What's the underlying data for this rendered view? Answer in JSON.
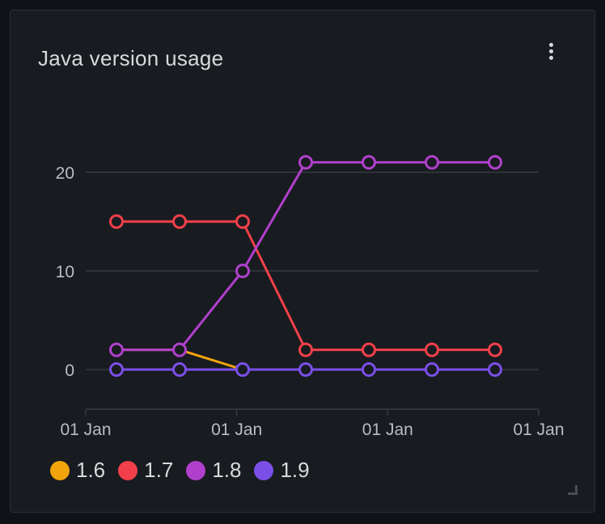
{
  "panel": {
    "title": "Java version usage"
  },
  "icons": {
    "menu": "vertical-ellipsis-icon",
    "resize": "resize-corner-icon"
  },
  "colors": {
    "background": "#111217",
    "panel": "#181b1f",
    "grid": "#363a42",
    "text": "#d8d9da",
    "axis_text": "#b9bcc4"
  },
  "chart_data": {
    "type": "line",
    "x_tick_labels": [
      "01 Jan",
      "01 Jan",
      "01 Jan",
      "01 Jan"
    ],
    "y_ticks": [
      0,
      10,
      20
    ],
    "ylim": [
      -4,
      28
    ],
    "grid": true,
    "legend_position": "bottom-left",
    "points_per_series": 7,
    "series": [
      {
        "name": "1.6",
        "color": "#f2a40c",
        "values": [
          2,
          2,
          0,
          0,
          0,
          0,
          0
        ],
        "markers": false
      },
      {
        "name": "1.7",
        "color": "#f2404a",
        "values": [
          15,
          15,
          15,
          2,
          2,
          2,
          2
        ],
        "markers": true
      },
      {
        "name": "1.8",
        "color": "#b040cc",
        "values": [
          2,
          2,
          10,
          21,
          21,
          21,
          21
        ],
        "markers": true
      },
      {
        "name": "1.9",
        "color": "#7a4fe8",
        "values": [
          0,
          0,
          0,
          0,
          0,
          0,
          0
        ],
        "markers": true
      }
    ]
  }
}
